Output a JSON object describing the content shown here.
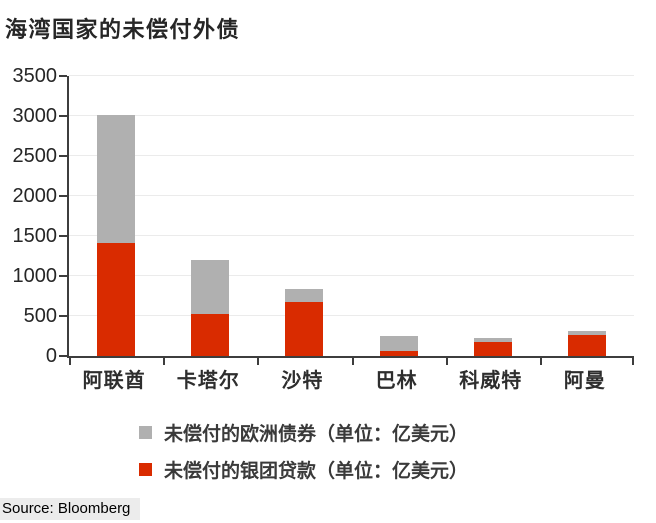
{
  "page": {
    "source": "Source: Bloomberg"
  },
  "chart_data": {
    "type": "bar",
    "stacked": true,
    "title": "海湾国家的未偿付外债",
    "xlabel": "",
    "ylabel": "",
    "unit": "亿美元",
    "categories": [
      "阿联酋",
      "卡塔尔",
      "沙特",
      "巴林",
      "科威特",
      "阿曼"
    ],
    "series": [
      {
        "name": "未偿付的银团贷款（单位：亿美元）",
        "color": "#d92b00",
        "values": [
          1410,
          520,
          670,
          65,
          175,
          260
        ]
      },
      {
        "name": "未偿付的欧洲债券（单位：亿美元）",
        "color": "#b0b0b0",
        "values": [
          1600,
          680,
          170,
          180,
          45,
          50
        ]
      }
    ],
    "totals": [
      3010,
      1200,
      840,
      245,
      220,
      310
    ],
    "ylim": [
      0,
      3500
    ],
    "ytick_step": 500,
    "ytick_labels": [
      "0",
      "500",
      "1000",
      "1500",
      "2000",
      "2500",
      "3000",
      "3500"
    ],
    "grid": true,
    "legend_position": "bottom-left",
    "legend_display_order": [
      1,
      0
    ]
  }
}
